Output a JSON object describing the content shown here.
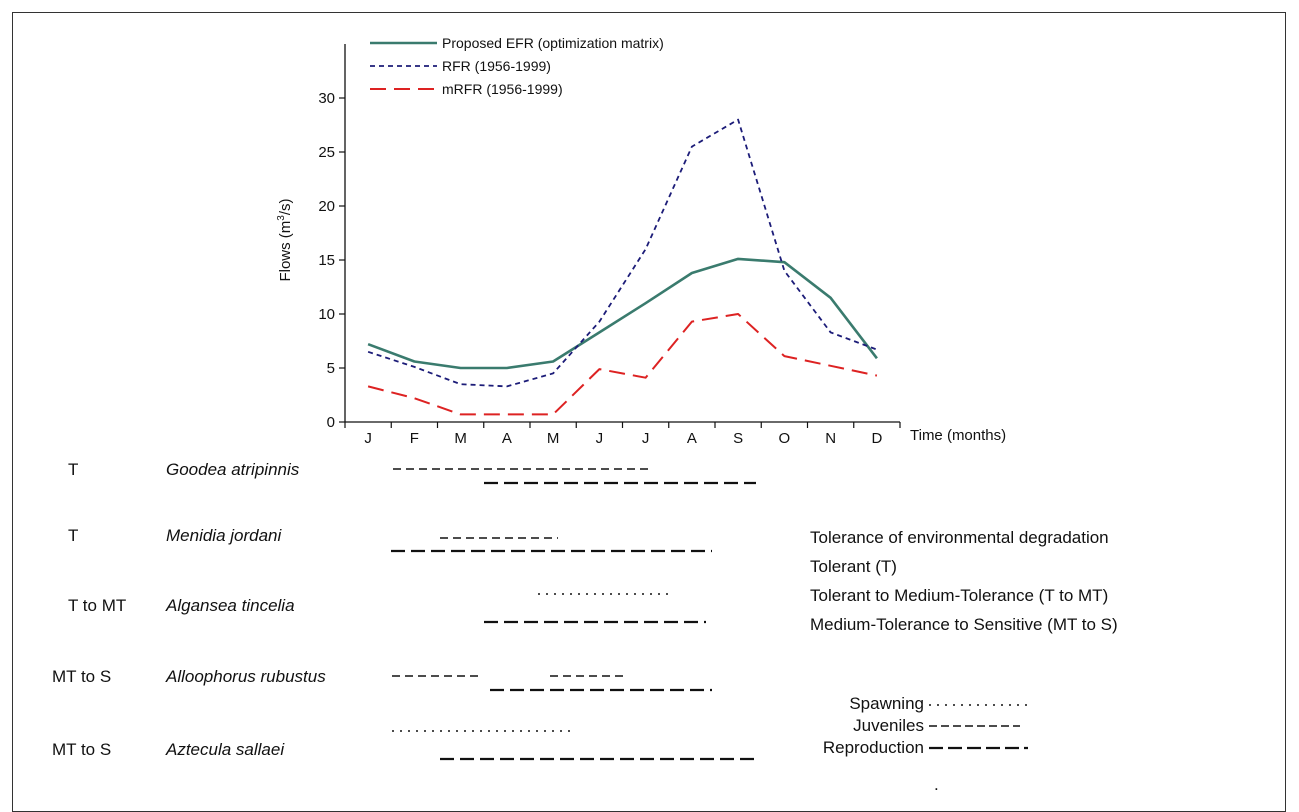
{
  "chart_data": {
    "type": "line",
    "categories": [
      "J",
      "F",
      "M",
      "A",
      "M",
      "J",
      "J",
      "A",
      "S",
      "O",
      "N",
      "D"
    ],
    "xlabel": "Time (months)",
    "ylabel": "Flows (m³/s)",
    "ylim": [
      0,
      35
    ],
    "yticks": [
      0,
      5,
      10,
      15,
      20,
      25,
      30
    ],
    "grid": false,
    "legend_position": "top-left",
    "series": [
      {
        "name": "Proposed EFR (optimization matrix)",
        "color": "#3a7b6e",
        "style": "solid",
        "values": [
          7.2,
          5.6,
          5.0,
          5.0,
          5.6,
          8.3,
          11.0,
          13.8,
          15.1,
          14.8,
          11.5,
          5.9
        ]
      },
      {
        "name": "RFR (1956-1999)",
        "color": "#1c1c78",
        "style": "short-dash",
        "values": [
          6.5,
          5.1,
          3.5,
          3.3,
          4.5,
          9.3,
          16.0,
          25.5,
          28.0,
          14.0,
          8.3,
          6.7
        ]
      },
      {
        "name": "mRFR (1956-1999)",
        "color": "#dd2222",
        "style": "long-dash",
        "values": [
          3.3,
          2.2,
          0.7,
          0.7,
          0.7,
          4.9,
          4.1,
          9.3,
          10.0,
          6.1,
          5.2,
          4.3
        ]
      }
    ]
  },
  "species_rows": [
    {
      "tolerance": "T",
      "species": "Goodea atripinnis"
    },
    {
      "tolerance": "T",
      "species": "Menidia jordani"
    },
    {
      "tolerance": "T to MT",
      "species": "Algansea tincelia"
    },
    {
      "tolerance": "MT to S",
      "species": "Alloophorus rubustus"
    },
    {
      "tolerance": "MT to S",
      "species": "Aztecula sallaei"
    }
  ],
  "tolerance_key": {
    "title": "Tolerance of environmental degradation",
    "items": [
      "Tolerant (T)",
      "Tolerant to Medium-Tolerance (T to MT)",
      "Medium-Tolerance to Sensitive (MT to S)"
    ]
  },
  "stage_key": {
    "spawning": "Spawning",
    "juveniles": "Juveniles",
    "reproduction": "Reproduction"
  },
  "footnote_mark": "."
}
